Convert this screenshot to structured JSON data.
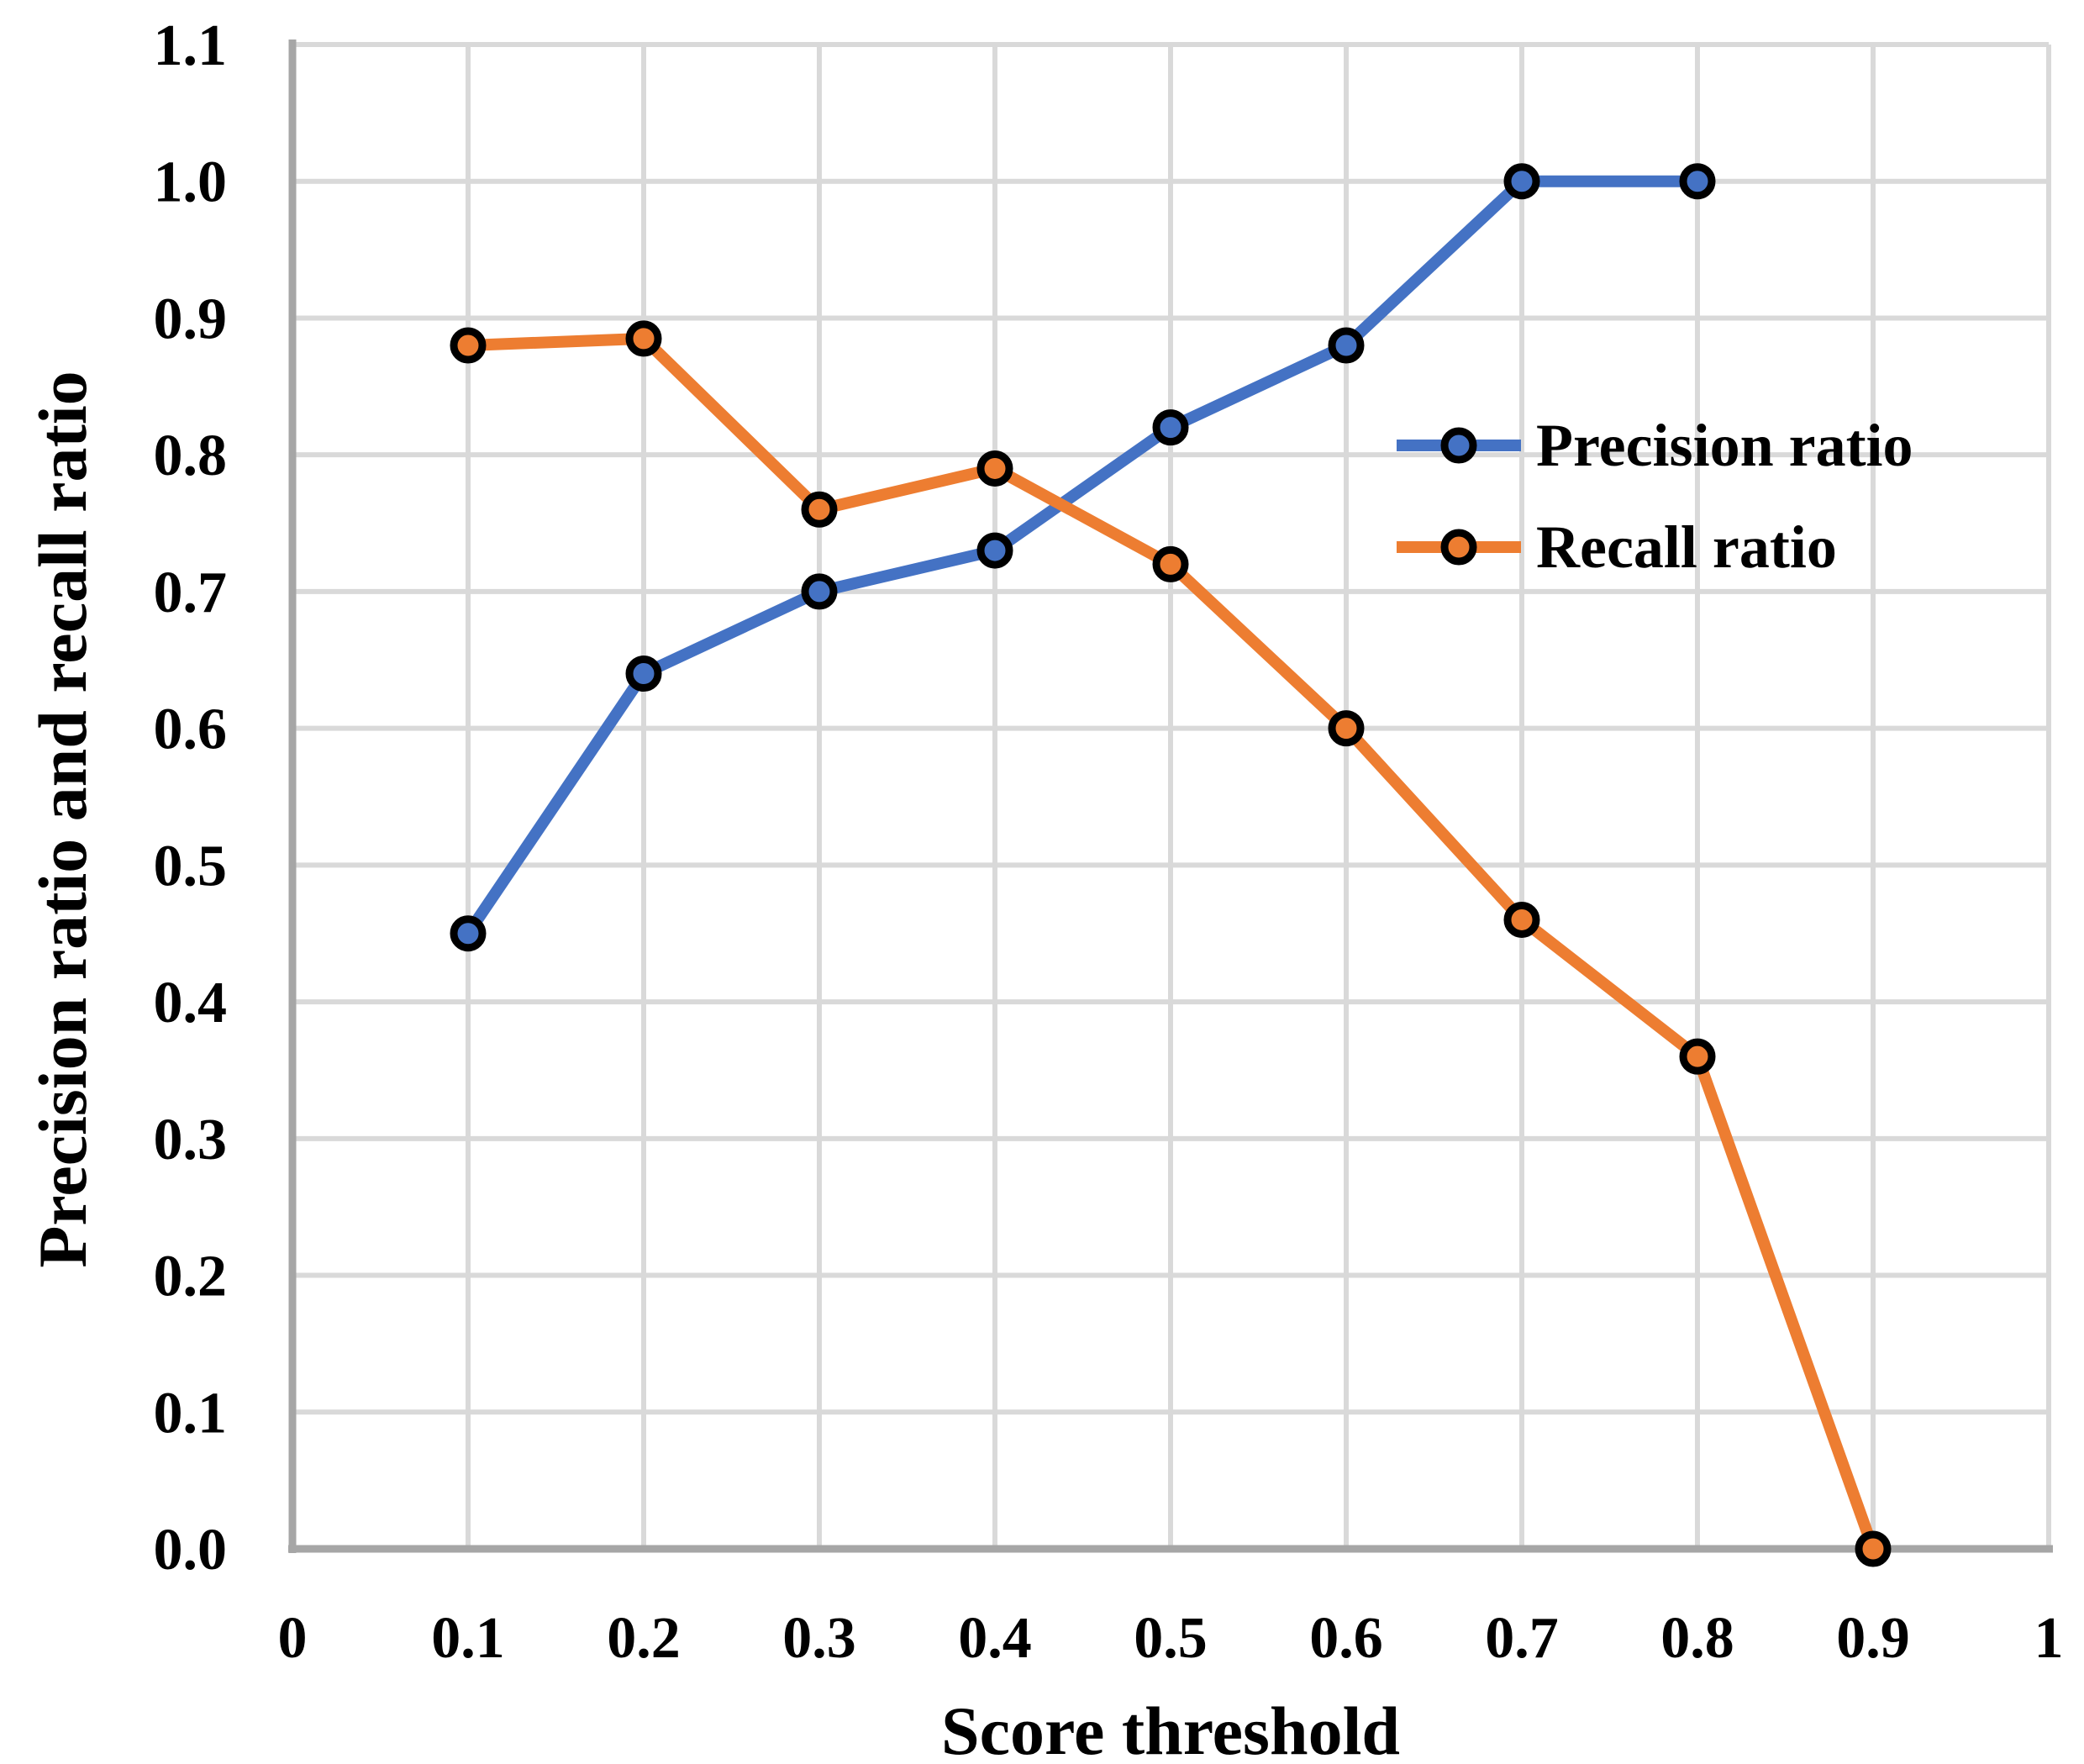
{
  "chart_data": {
    "type": "line",
    "title": "",
    "xlabel": "Score threshold",
    "ylabel": "Precision ratio and recall ratio",
    "xlim": [
      0,
      1
    ],
    "ylim": [
      0,
      1.1
    ],
    "grid": true,
    "legend_position": "inside right",
    "x_tick_values": [
      0,
      0.1,
      0.2,
      0.3,
      0.4,
      0.5,
      0.6,
      0.7,
      0.8,
      0.9,
      1
    ],
    "x_tick_labels": [
      "0",
      "0.1",
      "0.2",
      "0.3",
      "0.4",
      "0.5",
      "0.6",
      "0.7",
      "0.8",
      "0.9",
      "1"
    ],
    "y_tick_values": [
      0,
      0.1,
      0.2,
      0.3,
      0.4,
      0.5,
      0.6,
      0.7,
      0.8,
      0.9,
      1.0,
      1.1
    ],
    "y_tick_labels": [
      "0.0",
      "0.1",
      "0.2",
      "0.3",
      "0.4",
      "0.5",
      "0.6",
      "0.7",
      "0.8",
      "0.9",
      "1.0",
      "1.1"
    ],
    "series": [
      {
        "id": "precision",
        "name": "Precision ratio",
        "color": "#4472C4",
        "x": [
          0.1,
          0.2,
          0.3,
          0.4,
          0.5,
          0.6,
          0.7,
          0.8
        ],
        "values": [
          0.45,
          0.64,
          0.7,
          0.73,
          0.82,
          0.88,
          1.0,
          1.0
        ]
      },
      {
        "id": "recall",
        "name": "Recall ratio",
        "color": "#ED7D31",
        "x": [
          0.1,
          0.2,
          0.3,
          0.4,
          0.5,
          0.6,
          0.7,
          0.8,
          0.9
        ],
        "values": [
          0.88,
          0.885,
          0.76,
          0.79,
          0.72,
          0.6,
          0.46,
          0.36,
          0.0
        ]
      }
    ]
  },
  "style": {
    "background": "#FFFFFF",
    "grid_color": "#D9D9D9",
    "axis_color": "#A6A6A6",
    "marker_outline_color": "#000000",
    "text_color": "#000000"
  }
}
